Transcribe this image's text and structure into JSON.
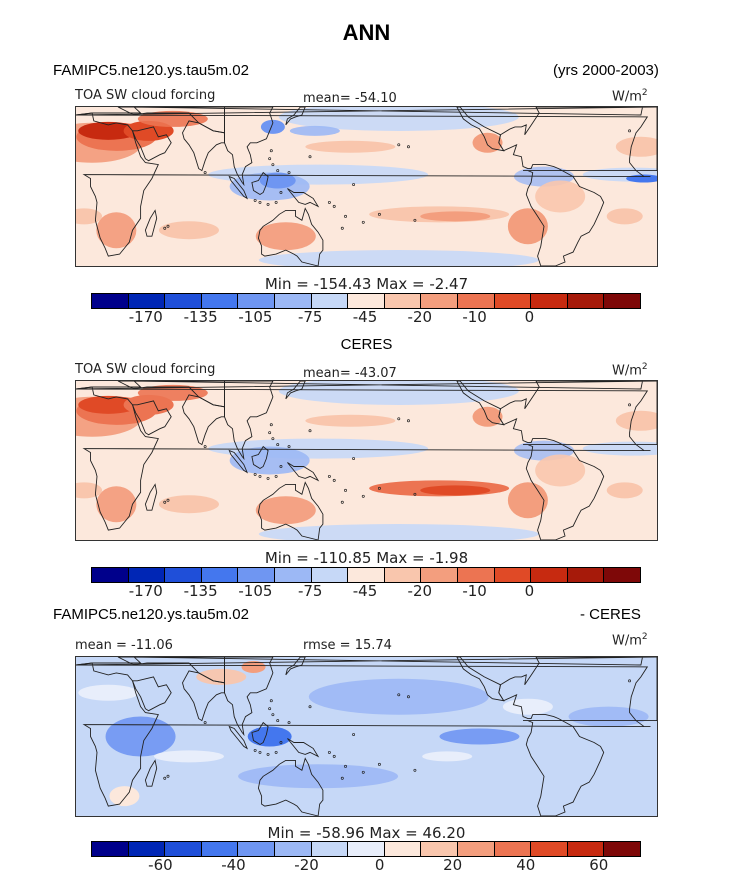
{
  "figure": {
    "title": "ANN",
    "case_name": "FAMIPC5.ne120.ys.tau5m.02",
    "years": "(yrs 2000-2003)",
    "obs_name": "CERES",
    "diff_left": "FAMIPC5.ne120.ys.tau5m.02",
    "diff_right": "- CERES"
  },
  "colors": {
    "abs_levels": [
      "#00008b",
      "#0026b5",
      "#1f4fd9",
      "#4477ee",
      "#6f96f2",
      "#9cb8f5",
      "#c6d8f7",
      "#fce8dc",
      "#f9c6ad",
      "#f39e7e",
      "#ec7452",
      "#e04a26",
      "#c72a10",
      "#a61a0a",
      "#7e0808"
    ],
    "diff_levels": [
      "#00008b",
      "#0026b5",
      "#1f4fd9",
      "#4477ee",
      "#6f96f2",
      "#9cb8f5",
      "#c6d8f7",
      "#e8eefb",
      "#fce8dc",
      "#f9c6ad",
      "#f39e7e",
      "#ec7452",
      "#e04a26",
      "#c72a10",
      "#7e0808"
    ],
    "land": "#ffffff",
    "coast": "#222222"
  },
  "chart_data": [
    {
      "type": "heatmap",
      "panel": "model",
      "label": "TOA SW cloud forcing",
      "mean": "mean= -54.10",
      "units": "W/m",
      "units_sup": "2",
      "min_max": "Min = -154.43 Max = -2.47",
      "min": -154.43,
      "max": -2.47,
      "colorbar_ticks": [
        "-170",
        "-135",
        "-105",
        "-75",
        "-45",
        "-20",
        "-10",
        "0"
      ]
    },
    {
      "type": "heatmap",
      "panel": "obs",
      "label": "TOA SW cloud forcing",
      "mean": "mean= -43.07",
      "units": "W/m",
      "units_sup": "2",
      "min_max": "Min = -110.85 Max = -1.98",
      "min": -110.85,
      "max": -1.98,
      "colorbar_ticks": [
        "-170",
        "-135",
        "-105",
        "-75",
        "-45",
        "-20",
        "-10",
        "0"
      ]
    },
    {
      "type": "heatmap",
      "panel": "difference",
      "mean": "mean = -11.06",
      "rmse": "rmse = 15.74",
      "units": "W/m",
      "units_sup": "2",
      "min_max": "Min = -58.96 Max = 46.20",
      "min": -58.96,
      "max": 46.2,
      "colorbar_ticks": [
        "-60",
        "-40",
        "-20",
        "0",
        "20",
        "40",
        "60"
      ]
    }
  ]
}
